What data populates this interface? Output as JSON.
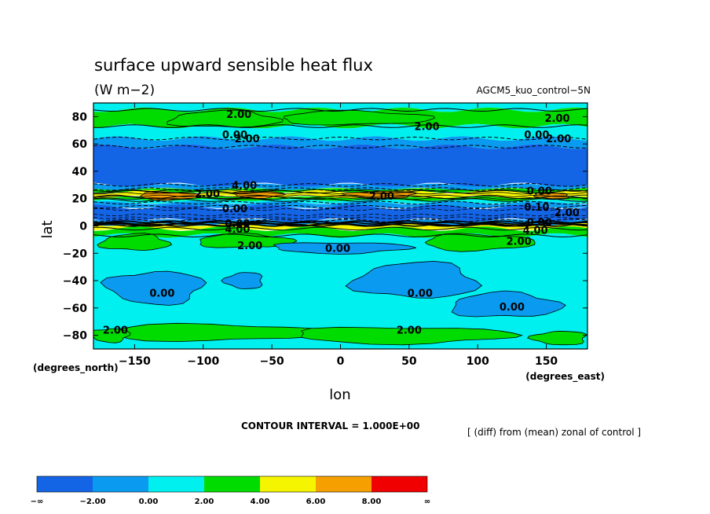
{
  "chart_data": {
    "type": "heatmap",
    "title": "surface upward sensible heat flux",
    "units": "(W m−2)",
    "dataset": "AGCM5_kuo_control−5N",
    "xlabel": "lon",
    "ylabel": "lat",
    "x_unit": "(degrees_east)",
    "y_unit": "(degrees_north)",
    "xlim": [
      -180,
      180
    ],
    "ylim": [
      -90,
      90
    ],
    "x_ticks": [
      {
        "v": -150,
        "t": "−150"
      },
      {
        "v": -100,
        "t": "−100"
      },
      {
        "v": -50,
        "t": "−50"
      },
      {
        "v": 0,
        "t": "0"
      },
      {
        "v": 50,
        "t": "50"
      },
      {
        "v": 100,
        "t": "100"
      },
      {
        "v": 150,
        "t": "150"
      }
    ],
    "y_ticks": [
      {
        "v": 80,
        "t": "80"
      },
      {
        "v": 60,
        "t": "60"
      },
      {
        "v": 40,
        "t": "40"
      },
      {
        "v": 20,
        "t": "20"
      },
      {
        "v": 0,
        "t": "0"
      },
      {
        "v": -20,
        "t": "−20"
      },
      {
        "v": -40,
        "t": "−40"
      },
      {
        "v": -60,
        "t": "−60"
      },
      {
        "v": -80,
        "t": "−80"
      }
    ],
    "contour_interval": "CONTOUR INTERVAL = 1.000E+00",
    "note": "[ (diff) from (mean) zonal of control ]",
    "levels": [
      {
        "label": "−∞",
        "color": "#1464e6"
      },
      {
        "label": "−2.00",
        "color": "#0a9af0"
      },
      {
        "label": "0.00",
        "color": "#00f0f0"
      },
      {
        "label": "2.00",
        "color": "#00dc00"
      },
      {
        "label": "4.00",
        "color": "#f5f500"
      },
      {
        "label": "6.00",
        "color": "#f5a000"
      },
      {
        "label": "8.00",
        "color": "#f00000"
      },
      {
        "label": "∞"
      }
    ],
    "bands": [
      {
        "lat": [
          85,
          90
        ],
        "color": "#00f0f0"
      },
      {
        "lat": [
          73,
          85
        ],
        "color": "#00dc00"
      },
      {
        "lat": [
          64,
          73
        ],
        "color": "#00f0f0"
      },
      {
        "lat": [
          58,
          64
        ],
        "color": "#0a9af0"
      },
      {
        "lat": [
          30,
          58
        ],
        "color": "#1464e6"
      },
      {
        "lat": [
          27,
          30
        ],
        "color": "#0a9af0"
      },
      {
        "lat": [
          25,
          27
        ],
        "color": "#00dc00"
      },
      {
        "lat": [
          21,
          25
        ],
        "color": "#f5f500"
      },
      {
        "lat": [
          19,
          21
        ],
        "color": "#00dc00"
      },
      {
        "lat": [
          17,
          19
        ],
        "color": "#00f0f0"
      },
      {
        "lat": [
          14,
          17
        ],
        "color": "#0a9af0"
      },
      {
        "lat": [
          4,
          14
        ],
        "color": "#1464e6"
      },
      {
        "lat": [
          1,
          4
        ],
        "color": "#0a9af0"
      },
      {
        "lat": [
          -2,
          1
        ],
        "color": "#f5f500"
      },
      {
        "lat": [
          -7,
          -2
        ],
        "color": "#00dc00"
      },
      {
        "lat": [
          -90,
          -7
        ],
        "color": "#00f0f0"
      }
    ],
    "blobs": [
      {
        "lon": -85,
        "lat": 78,
        "rx": 40,
        "ry": 6,
        "color": "#00dc00"
      },
      {
        "lon": 10,
        "lat": 79,
        "rx": 55,
        "ry": 5,
        "color": "#00dc00"
      },
      {
        "lon": -125,
        "lat": 22,
        "rx": 22,
        "ry": 3,
        "color": "#f5a000"
      },
      {
        "lon": -60,
        "lat": 23,
        "rx": 18,
        "ry": 2.5,
        "color": "#f5a000"
      },
      {
        "lon": 30,
        "lat": 23,
        "rx": 25,
        "ry": 2.5,
        "color": "#f5a000"
      },
      {
        "lon": 155,
        "lat": 22,
        "rx": 12,
        "ry": 2,
        "color": "#f5a000"
      },
      {
        "lon": -150,
        "lat": -12,
        "rx": 25,
        "ry": 6,
        "color": "#00dc00"
      },
      {
        "lon": -70,
        "lat": -11,
        "rx": 35,
        "ry": 5,
        "color": "#00dc00"
      },
      {
        "lon": 100,
        "lat": -12,
        "rx": 40,
        "ry": 6,
        "color": "#00dc00"
      },
      {
        "lon": 0,
        "lat": -16,
        "rx": 50,
        "ry": 4,
        "color": "#0a9af0"
      },
      {
        "lon": -135,
        "lat": -45,
        "rx": 35,
        "ry": 12,
        "color": "#0a9af0"
      },
      {
        "lon": -70,
        "lat": -40,
        "rx": 14,
        "ry": 6,
        "color": "#0a9af0"
      },
      {
        "lon": 55,
        "lat": -40,
        "rx": 45,
        "ry": 13,
        "color": "#0a9af0"
      },
      {
        "lon": 120,
        "lat": -58,
        "rx": 40,
        "ry": 9,
        "color": "#0a9af0"
      },
      {
        "lon": -95,
        "lat": -78,
        "rx": 80,
        "ry": 6,
        "color": "#00dc00"
      },
      {
        "lon": 45,
        "lat": -80,
        "rx": 80,
        "ry": 6,
        "color": "#00dc00"
      },
      {
        "lon": -168,
        "lat": -80,
        "rx": 14,
        "ry": 5,
        "color": "#00dc00"
      },
      {
        "lon": 160,
        "lat": -82,
        "rx": 20,
        "ry": 5,
        "color": "#00dc00"
      }
    ],
    "contour_labels": [
      {
        "lon": -74,
        "lat": 82,
        "t": "2.00"
      },
      {
        "lon": 158,
        "lat": 79,
        "t": "2.00"
      },
      {
        "lon": 63,
        "lat": 73,
        "t": "2.00"
      },
      {
        "lon": -77,
        "lat": 67,
        "t": "0.00"
      },
      {
        "lon": -68,
        "lat": 64,
        "t": "2.00"
      },
      {
        "lon": 143,
        "lat": 67,
        "t": "0.00"
      },
      {
        "lon": 159,
        "lat": 64,
        "t": "2.00"
      },
      {
        "lon": -70,
        "lat": 30,
        "t": "4.00"
      },
      {
        "lon": -97,
        "lat": 24,
        "t": "2.00"
      },
      {
        "lon": 30,
        "lat": 22,
        "t": "2.00"
      },
      {
        "lon": 145,
        "lat": 26,
        "t": "0.00"
      },
      {
        "lon": -77,
        "lat": 13,
        "t": "0.00"
      },
      {
        "lon": 143,
        "lat": 14,
        "t": "0.10"
      },
      {
        "lon": 165,
        "lat": 10,
        "t": "2.00"
      },
      {
        "lon": -75,
        "lat": 2,
        "t": "0.00"
      },
      {
        "lon": -75,
        "lat": -2,
        "t": "4.00"
      },
      {
        "lon": 145,
        "lat": 3,
        "t": "0.00"
      },
      {
        "lon": 142,
        "lat": -3,
        "t": "4.00"
      },
      {
        "lon": 130,
        "lat": -11,
        "t": "2.00"
      },
      {
        "lon": -66,
        "lat": -14,
        "t": "2.00"
      },
      {
        "lon": -2,
        "lat": -16,
        "t": "0.00"
      },
      {
        "lon": -130,
        "lat": -49,
        "t": "0.00"
      },
      {
        "lon": 58,
        "lat": -49,
        "t": "0.00"
      },
      {
        "lon": 125,
        "lat": -59,
        "t": "0.00"
      },
      {
        "lon": 50,
        "lat": -76,
        "t": "2.00"
      },
      {
        "lon": -164,
        "lat": -76,
        "t": "2.00"
      }
    ]
  }
}
